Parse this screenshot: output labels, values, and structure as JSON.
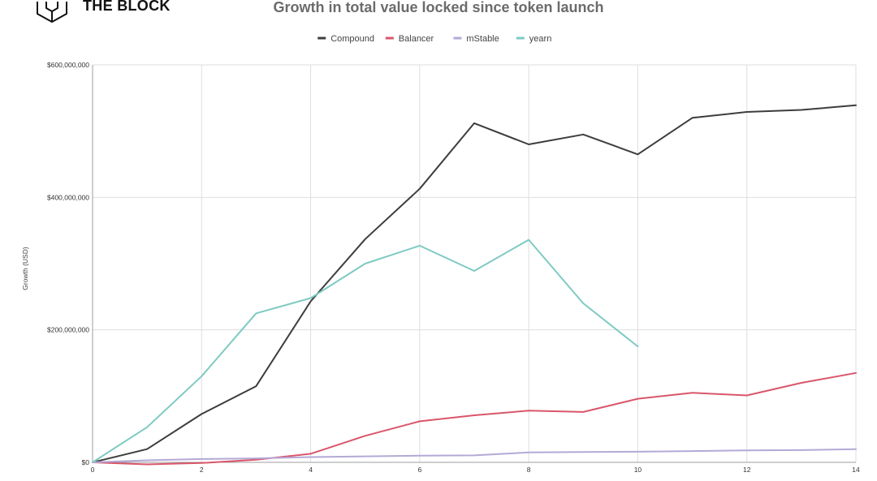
{
  "brand": {
    "name": "THE BLOCK",
    "logo_icon": "cube-logo-icon"
  },
  "chart_data": {
    "type": "line",
    "title": "Growth in total value locked since token launch",
    "xlabel": "",
    "ylabel": "Growth (USD)",
    "xlim": [
      0,
      14
    ],
    "ylim": [
      0,
      600000000
    ],
    "x_ticks": [
      0,
      2,
      4,
      6,
      8,
      10,
      12,
      14
    ],
    "y_ticks": [
      0,
      200000000,
      400000000,
      600000000
    ],
    "y_tick_labels": [
      "$0",
      "$200,000,000",
      "$400,000,000",
      "$600,000,000"
    ],
    "grid": true,
    "legend_position": "top-center",
    "series": [
      {
        "name": "Compound",
        "color": "#3d3d3d",
        "x": [
          0,
          1,
          2,
          3,
          4,
          5,
          6,
          7,
          8,
          9,
          10,
          11,
          12,
          13,
          14
        ],
        "y": [
          0,
          20000000,
          73000000,
          115000000,
          243000000,
          337000000,
          413000000,
          512000000,
          480000000,
          495000000,
          465000000,
          520000000,
          529000000,
          532000000,
          539000000
        ]
      },
      {
        "name": "Balancer",
        "color": "#d9566b",
        "x": [
          0,
          1,
          2,
          3,
          4,
          5,
          6,
          7,
          8,
          9,
          10,
          11,
          12,
          13,
          14
        ],
        "y": [
          0,
          -3000000,
          -1000000,
          4000000,
          13000000,
          40000000,
          62000000,
          71000000,
          78000000,
          76000000,
          96000000,
          105000000,
          101000000,
          120000000,
          135000000
        ]
      },
      {
        "name": "mStable",
        "color": "#b4a9d6",
        "x": [
          0,
          1,
          2,
          3,
          4,
          5,
          6,
          7,
          8,
          9,
          10,
          11,
          12,
          13,
          14
        ],
        "y": [
          0,
          3000000,
          5000000,
          6000000,
          8000000,
          9000000,
          10000000,
          10500000,
          15000000,
          15500000,
          16000000,
          17000000,
          18000000,
          18500000,
          20000000
        ]
      },
      {
        "name": "yearn",
        "color": "#7ecac3",
        "x": [
          0,
          1,
          2,
          3,
          4,
          5,
          6,
          7,
          8,
          9,
          10
        ],
        "y": [
          0,
          53000000,
          130000000,
          225000000,
          248000000,
          300000000,
          327000000,
          289000000,
          336000000,
          240000000,
          175000000
        ]
      }
    ]
  }
}
